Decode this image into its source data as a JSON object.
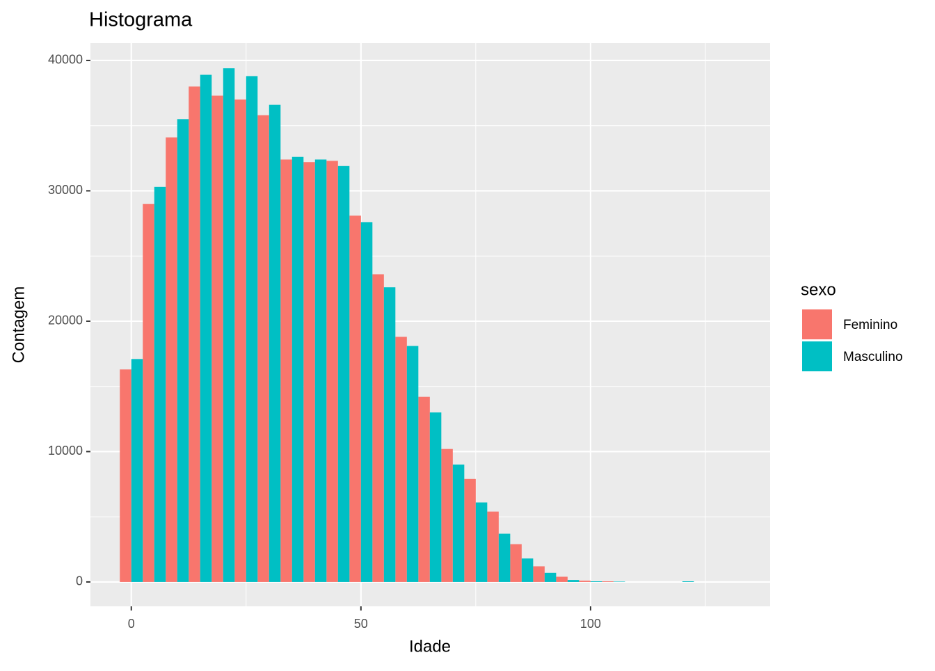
{
  "chart_data": {
    "type": "histogram",
    "title": "Histograma",
    "x_label": "Idade",
    "y_label": "Contagem",
    "legend_title": "sexo",
    "legend_position": "right",
    "grid": true,
    "position": "dodge",
    "bins": [
      -2.5,
      2.5,
      7.5,
      12.5,
      17.5,
      22.5,
      27.5,
      32.5,
      37.5,
      42.5,
      47.5,
      52.5,
      57.5,
      62.5,
      67.5,
      72.5,
      77.5,
      82.5,
      87.5,
      92.5,
      97.5,
      102.5,
      107.5,
      112.5,
      117.5,
      122.5
    ],
    "series": [
      {
        "name": "Feminino",
        "color": "#F8766D",
        "values": [
          16300,
          29000,
          34100,
          38000,
          37300,
          37000,
          35800,
          32400,
          32200,
          32300,
          28100,
          23600,
          18800,
          14200,
          10200,
          7900,
          5400,
          2900,
          1200,
          400,
          100,
          50,
          0,
          0,
          0
        ]
      },
      {
        "name": "Masculino",
        "color": "#00BFC4",
        "values": [
          17100,
          30300,
          35500,
          38900,
          39400,
          38800,
          36600,
          32600,
          32400,
          31900,
          27600,
          22600,
          18100,
          13000,
          9000,
          6100,
          3700,
          1800,
          700,
          150,
          50,
          30,
          0,
          0,
          50
        ]
      }
    ],
    "xlim": [
      -8.9,
      139.1
    ],
    "xticks": [
      0,
      50,
      100
    ],
    "ylim": [
      -1870,
      41330
    ],
    "yticks": [
      0,
      10000,
      20000,
      30000,
      40000
    ]
  }
}
